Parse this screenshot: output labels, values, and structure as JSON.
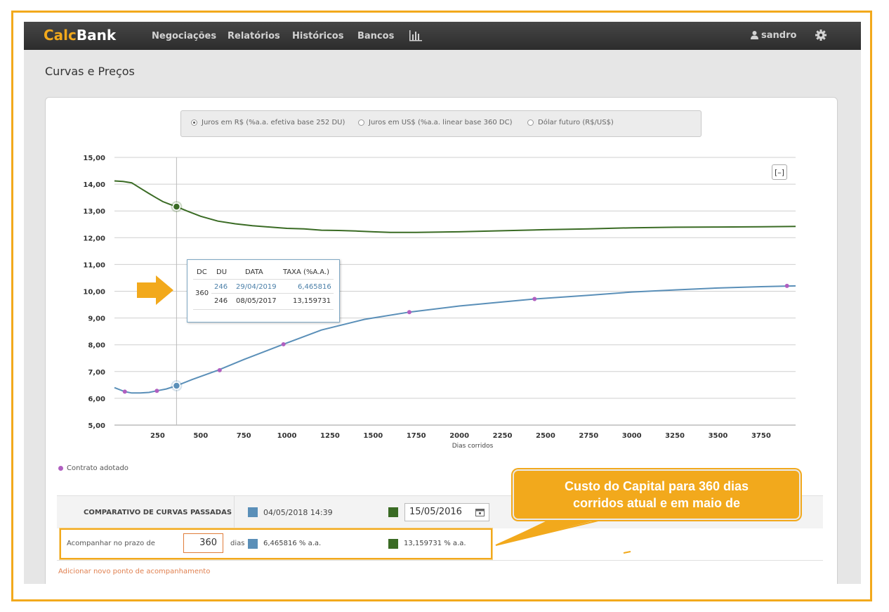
{
  "app": {
    "brand_part1": "Calc",
    "brand_part2": "Bank",
    "nav": [
      "Negociações",
      "Relatórios",
      "Históricos",
      "Bancos"
    ],
    "nav_chart_icon": "bar-chart-icon",
    "user": "sandro",
    "user_icon": "user-icon",
    "settings_icon": "gear-icon",
    "page_title": "Curvas e Preços",
    "accent": "#f2a91c"
  },
  "curve_options": [
    {
      "label": "Juros em R$ (%a.a. efetiva base 252 DU)",
      "selected": true
    },
    {
      "label": "Juros em US$ (%a.a. linear base 360 DC)",
      "selected": false
    },
    {
      "label": "Dólar futuro (R$/US$)",
      "selected": false
    }
  ],
  "collapse_label": "[–]",
  "chart_data": {
    "type": "line",
    "xlabel": "Dias corridos",
    "ylabel": "",
    "xlim": [
      0,
      3950
    ],
    "ylim": [
      5,
      15
    ],
    "x_ticks": [
      250,
      500,
      750,
      1000,
      1250,
      1500,
      1750,
      2000,
      2250,
      2500,
      2750,
      3000,
      3250,
      3500,
      3750
    ],
    "y_ticks": [
      "15,00",
      "14,00",
      "13,00",
      "12,00",
      "11,00",
      "10,00",
      "9,00",
      "8,00",
      "7,00",
      "6,00",
      "5,00"
    ],
    "y_tick_values": [
      15,
      14,
      13,
      12,
      11,
      10,
      9,
      8,
      7,
      6,
      5
    ],
    "grid": true,
    "series": [
      {
        "name": "15/05/2016",
        "color": "#3a6b24",
        "points": [
          [
            0,
            14.12
          ],
          [
            50,
            14.1
          ],
          [
            100,
            14.05
          ],
          [
            150,
            13.85
          ],
          [
            200,
            13.65
          ],
          [
            240,
            13.5
          ],
          [
            280,
            13.35
          ],
          [
            320,
            13.25
          ],
          [
            360,
            13.16
          ],
          [
            420,
            13.0
          ],
          [
            500,
            12.8
          ],
          [
            600,
            12.62
          ],
          [
            700,
            12.52
          ],
          [
            800,
            12.45
          ],
          [
            900,
            12.4
          ],
          [
            1000,
            12.35
          ],
          [
            1100,
            12.33
          ],
          [
            1200,
            12.28
          ],
          [
            1300,
            12.27
          ],
          [
            1400,
            12.25
          ],
          [
            1500,
            12.22
          ],
          [
            1600,
            12.2
          ],
          [
            1750,
            12.2
          ],
          [
            2000,
            12.22
          ],
          [
            2250,
            12.26
          ],
          [
            2500,
            12.3
          ],
          [
            2750,
            12.33
          ],
          [
            3000,
            12.37
          ],
          [
            3250,
            12.39
          ],
          [
            3500,
            12.4
          ],
          [
            3750,
            12.41
          ],
          [
            3950,
            12.42
          ]
        ]
      },
      {
        "name": "04/05/2018 14:39",
        "color": "#5a8fb8",
        "points": [
          [
            0,
            6.4
          ],
          [
            60,
            6.25
          ],
          [
            100,
            6.2
          ],
          [
            150,
            6.2
          ],
          [
            200,
            6.22
          ],
          [
            246,
            6.28
          ],
          [
            300,
            6.35
          ],
          [
            360,
            6.47
          ],
          [
            450,
            6.7
          ],
          [
            600,
            7.05
          ],
          [
            750,
            7.45
          ],
          [
            980,
            8.02
          ],
          [
            1200,
            8.55
          ],
          [
            1450,
            8.95
          ],
          [
            1710,
            9.22
          ],
          [
            2000,
            9.45
          ],
          [
            2250,
            9.6
          ],
          [
            2436,
            9.71
          ],
          [
            2750,
            9.85
          ],
          [
            3000,
            9.97
          ],
          [
            3250,
            10.05
          ],
          [
            3500,
            10.12
          ],
          [
            3750,
            10.17
          ],
          [
            3950,
            10.2
          ]
        ]
      }
    ],
    "contract_points_x": [
      60,
      246,
      610,
      980,
      1710,
      2436,
      3900
    ],
    "contract_points_y": [
      6.25,
      6.28,
      7.05,
      8.02,
      9.22,
      9.71,
      10.2
    ],
    "hover_x": 360,
    "legend": "Contrato adotado"
  },
  "tooltip": {
    "headers": [
      "DC",
      "DU",
      "DATA",
      "TAXA (%A.A.)"
    ],
    "dc": "360",
    "rows": [
      {
        "du": "246",
        "data": "29/04/2019",
        "taxa": "6,465816"
      },
      {
        "du": "246",
        "data": "08/05/2017",
        "taxa": "13,159731"
      }
    ]
  },
  "comparison": {
    "title": "COMPARATIVO DE CURVAS PASSADAS",
    "current_date": "04/05/2018 14:39",
    "current_color": "#5a8fb8",
    "past_date": "15/05/2016",
    "past_color": "#3a6b24",
    "track_label": "Acompanhar no prazo de",
    "days": "360",
    "days_unit": "dias",
    "current_rate": "6,465816 % a.a.",
    "past_rate": "13,159731 % a.a.",
    "add_link": "Adicionar novo ponto de acompanhamento"
  },
  "callout": {
    "line1": "Custo do Capital para 360 dias",
    "line2": "corridos atual e em maio de"
  }
}
